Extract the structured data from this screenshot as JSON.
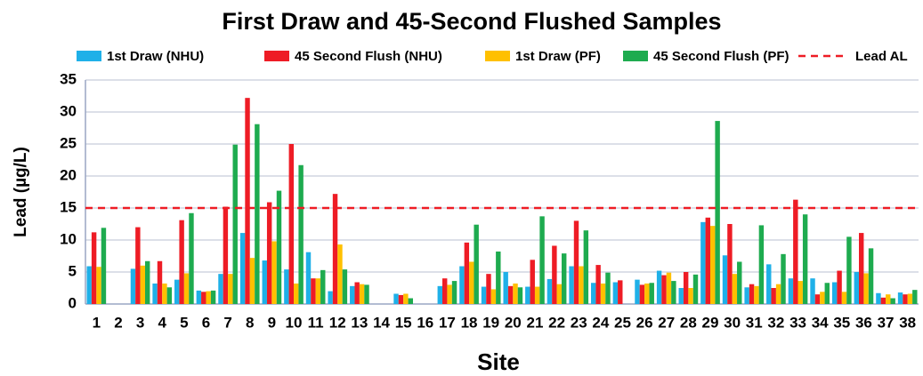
{
  "chart_data": {
    "type": "bar",
    "title": "First Draw and 45-Second Flushed Samples",
    "x_label": "Site",
    "y_label": "Lead (µg/L)",
    "categories": [
      "1",
      "2",
      "3",
      "4",
      "5",
      "6",
      "7",
      "8",
      "9",
      "10",
      "11",
      "12",
      "13",
      "14",
      "15",
      "16",
      "17",
      "18",
      "19",
      "20",
      "21",
      "22",
      "23",
      "24",
      "25",
      "26",
      "27",
      "28",
      "29",
      "30",
      "31",
      "32",
      "33",
      "34",
      "35",
      "36",
      "37",
      "38"
    ],
    "series": [
      {
        "name": "1st Draw (NHU)",
        "color": "#1fb0e8",
        "values": [
          5.9,
          null,
          5.5,
          3.2,
          3.8,
          2.1,
          4.7,
          11.1,
          6.8,
          5.4,
          8.1,
          2.0,
          2.8,
          null,
          1.6,
          null,
          2.8,
          5.9,
          2.7,
          5.0,
          2.7,
          3.9,
          5.9,
          3.3,
          3.4,
          3.8,
          5.2,
          2.5,
          12.8,
          7.6,
          2.6,
          6.2,
          4.0,
          4.0,
          3.4,
          5.0,
          1.7,
          1.8
        ]
      },
      {
        "name": "45 Second Flush (NHU)",
        "color": "#ee1c25",
        "values": [
          11.2,
          null,
          12.0,
          6.7,
          13.1,
          1.9,
          15.2,
          32.2,
          15.9,
          25.0,
          4.0,
          17.2,
          3.4,
          null,
          1.4,
          null,
          4.0,
          9.6,
          4.7,
          2.8,
          6.9,
          9.1,
          13.0,
          6.1,
          3.7,
          3.0,
          4.5,
          5.0,
          13.5,
          12.5,
          3.1,
          2.5,
          16.3,
          1.5,
          5.2,
          11.1,
          1.0,
          1.5
        ]
      },
      {
        "name": "1st Draw (PF)",
        "color": "#ffc000",
        "values": [
          5.8,
          null,
          6.0,
          3.2,
          4.8,
          2.0,
          4.7,
          7.2,
          9.8,
          3.2,
          4.0,
          9.3,
          3.1,
          null,
          1.6,
          null,
          3.0,
          6.6,
          2.3,
          3.2,
          2.7,
          3.1,
          5.9,
          3.2,
          null,
          3.2,
          4.9,
          2.5,
          12.2,
          4.7,
          2.8,
          3.1,
          3.6,
          1.9,
          1.9,
          4.8,
          1.5,
          1.6
        ]
      },
      {
        "name": "45 Second Flush (PF)",
        "color": "#1eab4f",
        "values": [
          11.9,
          null,
          6.7,
          2.6,
          14.2,
          2.1,
          24.9,
          28.1,
          17.7,
          21.7,
          5.3,
          5.4,
          3.0,
          null,
          0.9,
          null,
          3.6,
          12.4,
          8.2,
          2.6,
          13.7,
          7.9,
          11.5,
          4.9,
          null,
          3.3,
          3.6,
          4.6,
          28.6,
          6.6,
          12.3,
          7.8,
          14.0,
          3.3,
          10.5,
          8.7,
          0.9,
          2.2
        ]
      }
    ],
    "reference_line": {
      "name": "Lead AL",
      "value": 15,
      "color": "#ee1c25"
    },
    "ylim": [
      0,
      35
    ],
    "yticks": [
      0,
      5,
      10,
      15,
      20,
      25,
      30,
      35
    ],
    "grid": true
  }
}
